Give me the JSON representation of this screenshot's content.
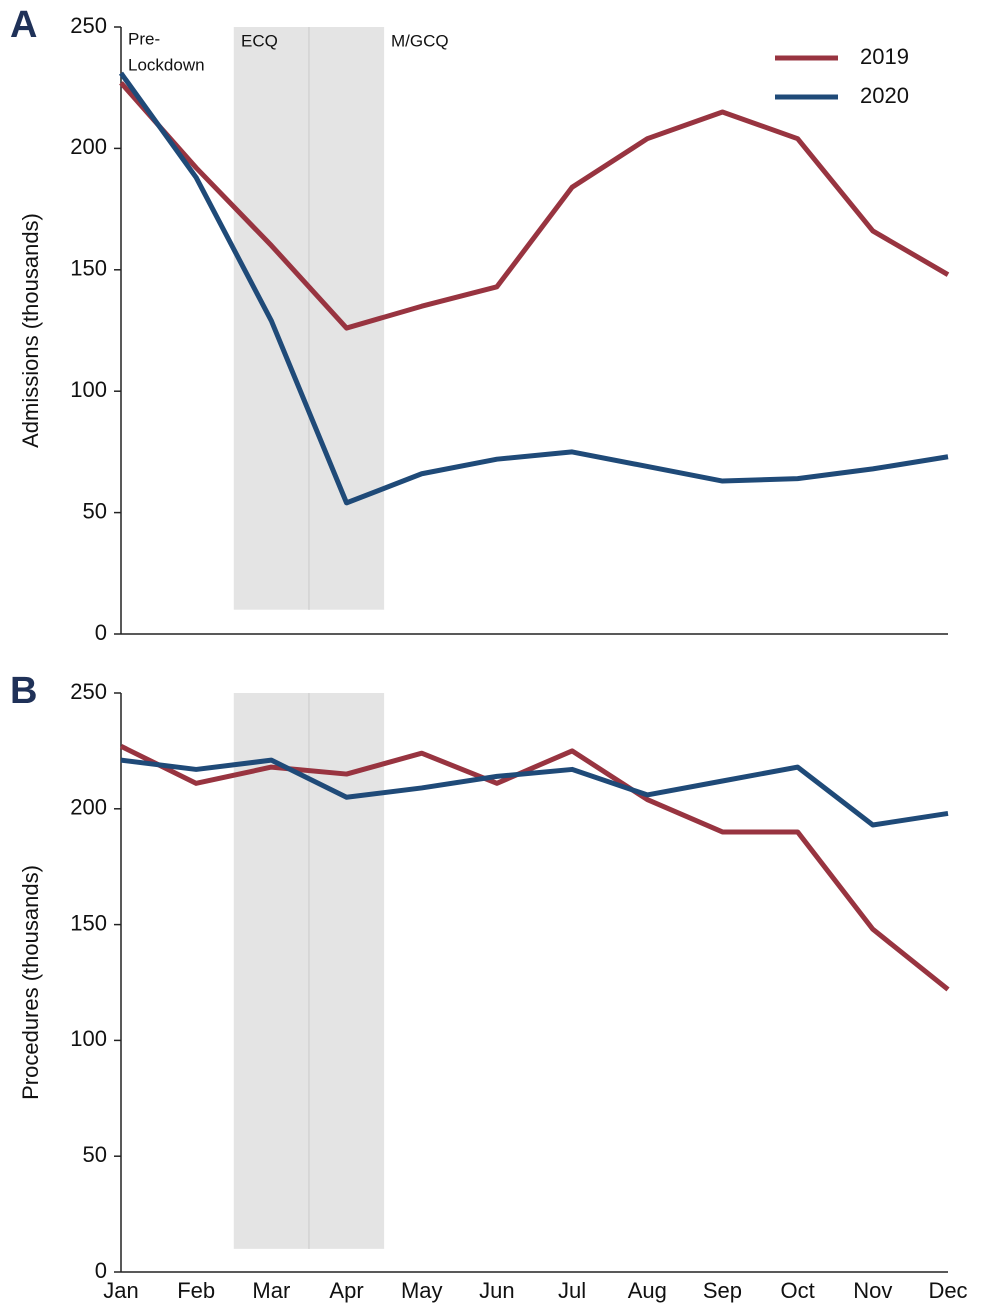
{
  "chart_data": [
    {
      "type": "line",
      "panel_label": "A",
      "ylabel": "Admissions (thousands)",
      "ylim": [
        0,
        250
      ],
      "yticks": [
        0,
        50,
        100,
        150,
        200,
        250
      ],
      "annotations": [
        "Pre-",
        "Lockdown",
        "ECQ",
        "M/GCQ"
      ],
      "legend": "upper right",
      "series": [
        {
          "name": "2019",
          "color": "#983440",
          "values": [
            227,
            192,
            160,
            126,
            135,
            143,
            184,
            204,
            215,
            204,
            166,
            148
          ]
        },
        {
          "name": "2020",
          "color": "#1f4a78",
          "values": [
            231,
            188,
            129,
            54,
            66,
            72,
            75,
            69,
            63,
            64,
            68,
            73
          ]
        }
      ]
    },
    {
      "type": "line",
      "panel_label": "B",
      "ylabel": "Procedures (thousands)",
      "categories": [
        "Jan",
        "Feb",
        "Mar",
        "Apr",
        "May",
        "Jun",
        "Jul",
        "Aug",
        "Sep",
        "Oct",
        "Nov",
        "Dec"
      ],
      "ylim": [
        0,
        250
      ],
      "yticks": [
        0,
        50,
        100,
        150,
        200,
        250
      ],
      "series": [
        {
          "color": "#983440",
          "values": [
            227,
            211,
            218,
            215,
            224,
            211,
            225,
            204,
            190,
            190,
            148,
            122
          ]
        },
        {
          "color": "#1f4a78",
          "values": [
            221,
            217,
            221,
            205,
            209,
            214,
            217,
            206,
            212,
            218,
            193,
            198
          ]
        }
      ]
    }
  ]
}
